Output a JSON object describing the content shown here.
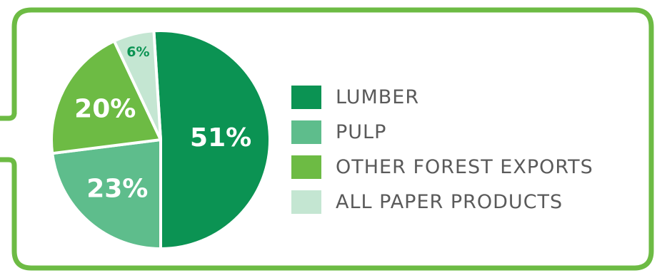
{
  "chart_data": {
    "type": "pie",
    "slices": [
      {
        "label": "LUMBER",
        "value": 51,
        "display": "51%",
        "color": "#0b9353",
        "label_color": "#ffffff"
      },
      {
        "label": "PULP",
        "value": 23,
        "display": "23%",
        "color": "#5ebd8c",
        "label_color": "#ffffff"
      },
      {
        "label": "OTHER FOREST EXPORTS",
        "value": 20,
        "display": "20%",
        "color": "#6dbb44",
        "label_color": "#ffffff"
      },
      {
        "label": "ALL PAPER PRODUCTS",
        "value": 6,
        "display": "6%",
        "color": "#c4e6d2",
        "label_color": "#0b9353"
      }
    ],
    "legend_position": "right",
    "frame_color": "#6dbb44"
  }
}
